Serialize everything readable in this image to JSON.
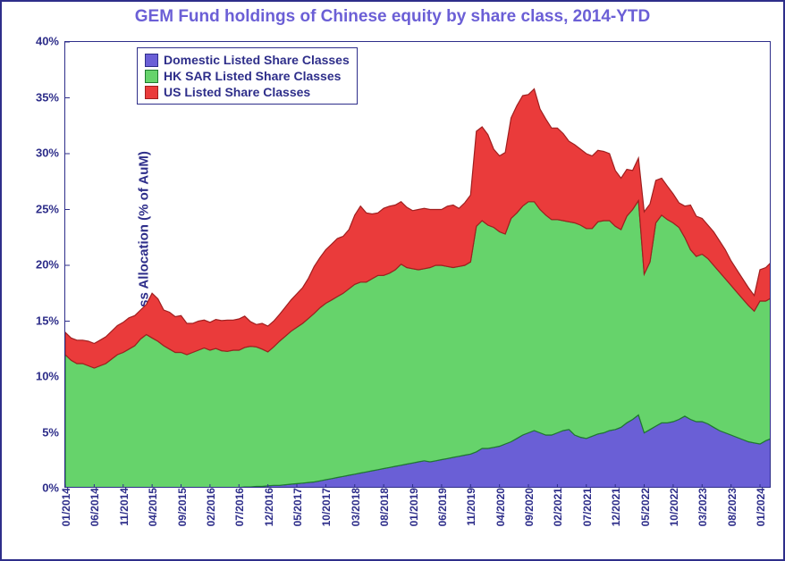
{
  "chart": {
    "type": "stacked_area",
    "title": "GEM Fund holdings of Chinese equity by share class, 2014-YTD",
    "title_fontsize": 19,
    "title_color": "#6b5fd6",
    "yaxis_label": "China Share Class Allocation (% of AuM)",
    "axis_label_fontsize": 15,
    "axis_color": "#2e2e8a",
    "border_color": "#2e2e8a",
    "background_color": "#ffffff",
    "grid": {
      "enabled": false
    },
    "ylim": [
      0,
      40
    ],
    "ytick_step": 5,
    "ytick_labels": [
      "0%",
      "5%",
      "10%",
      "15%",
      "20%",
      "25%",
      "30%",
      "35%",
      "40%"
    ],
    "ytick_fontsize": 13,
    "x_ticks": {
      "indices": [
        0,
        5,
        10,
        15,
        20,
        25,
        30,
        35,
        40,
        45,
        50,
        55,
        60,
        65,
        70,
        75,
        80,
        85,
        90,
        95,
        100,
        105,
        110,
        115,
        120
      ],
      "labels": [
        "01/2014",
        "06/2014",
        "11/2014",
        "04/2015",
        "09/2015",
        "02/2016",
        "07/2016",
        "12/2016",
        "05/2017",
        "10/2017",
        "03/2018",
        "08/2018",
        "01/2019",
        "06/2019",
        "11/2019",
        "04/2020",
        "09/2020",
        "02/2021",
        "07/2021",
        "12/2021",
        "05/2022",
        "10/2022",
        "03/2023",
        "08/2023",
        "01/2024"
      ],
      "fontsize": 12,
      "rotation": -90
    },
    "legend": {
      "position": "top-left-inside",
      "border_color": "#2e2e8a",
      "font_color": "#2e2e8a",
      "fontsize": 14,
      "items": [
        {
          "label": "Domestic Listed Share Classes",
          "fill": "#6a5fd6",
          "stroke": "#2e2e8a"
        },
        {
          "label": "HK SAR Listed Share Classes",
          "fill": "#66d36b",
          "stroke": "#1f7a2f"
        },
        {
          "label": "US Listed Share Classes",
          "fill": "#ea3b3b",
          "stroke": "#a01f1f"
        }
      ]
    },
    "series": [
      {
        "name": "Domestic Listed Share Classes",
        "fill": "#6a5fd6",
        "stroke": "#2e2e8a",
        "stroke_width": 1.2,
        "values": [
          0,
          0,
          0,
          0,
          0,
          0,
          0,
          0,
          0,
          0,
          0,
          0,
          0,
          0,
          0,
          0,
          0,
          0,
          0,
          0,
          0,
          0,
          0,
          0,
          0,
          0,
          0.05,
          0.05,
          0.1,
          0.1,
          0.1,
          0.15,
          0.15,
          0.2,
          0.2,
          0.25,
          0.3,
          0.3,
          0.35,
          0.4,
          0.45,
          0.5,
          0.55,
          0.6,
          0.7,
          0.8,
          0.9,
          1.0,
          1.1,
          1.2,
          1.3,
          1.4,
          1.5,
          1.6,
          1.7,
          1.8,
          1.9,
          2.0,
          2.1,
          2.2,
          2.3,
          2.4,
          2.5,
          2.4,
          2.5,
          2.6,
          2.7,
          2.8,
          2.9,
          3.0,
          3.1,
          3.3,
          3.6,
          3.6,
          3.7,
          3.8,
          4.0,
          4.2,
          4.5,
          4.8,
          5.0,
          5.2,
          5.0,
          4.8,
          4.8,
          5.0,
          5.2,
          5.3,
          4.8,
          4.6,
          4.5,
          4.7,
          4.9,
          5.0,
          5.2,
          5.3,
          5.5,
          5.9,
          6.2,
          6.6,
          5.0,
          5.3,
          5.6,
          5.9,
          5.9,
          6.0,
          6.2,
          6.5,
          6.2,
          6.0,
          6.0,
          5.8,
          5.5,
          5.2,
          5.0,
          4.8,
          4.6,
          4.4,
          4.2,
          4.1,
          4.0,
          4.3,
          4.5
        ]
      },
      {
        "name": "HK SAR Listed Share Classes",
        "fill": "#66d36b",
        "stroke": "#1f7a2f",
        "stroke_width": 1.2,
        "values": [
          12.0,
          11.5,
          11.2,
          11.2,
          11.0,
          10.8,
          11.0,
          11.2,
          11.6,
          12.0,
          12.2,
          12.5,
          12.8,
          13.4,
          13.8,
          13.5,
          13.2,
          12.8,
          12.5,
          12.2,
          12.2,
          12.0,
          12.2,
          12.4,
          12.6,
          12.4,
          12.5,
          12.3,
          12.2,
          12.3,
          12.3,
          12.5,
          12.6,
          12.5,
          12.3,
          12.0,
          12.4,
          12.9,
          13.3,
          13.7,
          14.0,
          14.3,
          14.7,
          15.1,
          15.5,
          15.8,
          16.0,
          16.2,
          16.4,
          16.7,
          17.0,
          17.1,
          17.0,
          17.2,
          17.4,
          17.3,
          17.4,
          17.6,
          18.0,
          17.6,
          17.4,
          17.2,
          17.2,
          17.4,
          17.5,
          17.4,
          17.2,
          17.0,
          17.0,
          17.0,
          17.2,
          20.2,
          20.4,
          20.0,
          19.7,
          19.2,
          18.8,
          20.0,
          20.2,
          20.5,
          20.7,
          20.5,
          20.0,
          19.7,
          19.3,
          19.1,
          18.8,
          18.6,
          19.0,
          19.0,
          18.8,
          18.6,
          19.0,
          19.0,
          18.8,
          18.2,
          17.7,
          18.5,
          18.8,
          19.2,
          14.2,
          15.0,
          18.2,
          18.6,
          18.2,
          17.8,
          17.2,
          16.0,
          15.2,
          14.8,
          15.0,
          14.8,
          14.5,
          14.2,
          13.8,
          13.4,
          13.0,
          12.6,
          12.2,
          11.8,
          12.8,
          12.5,
          12.6
        ]
      },
      {
        "name": "US Listed Share Classes",
        "fill": "#ea3b3b",
        "stroke": "#a01f1f",
        "stroke_width": 1.2,
        "values": [
          2.0,
          2.0,
          2.1,
          2.1,
          2.2,
          2.2,
          2.3,
          2.4,
          2.5,
          2.6,
          2.7,
          2.8,
          2.7,
          2.6,
          2.7,
          4.0,
          3.8,
          3.2,
          3.3,
          3.2,
          3.3,
          2.8,
          2.6,
          2.6,
          2.5,
          2.5,
          2.6,
          2.7,
          2.8,
          2.7,
          2.8,
          2.8,
          2.2,
          2.0,
          2.3,
          2.3,
          2.3,
          2.4,
          2.6,
          2.8,
          3.0,
          3.2,
          3.6,
          4.2,
          4.5,
          4.8,
          5.0,
          5.2,
          5.1,
          5.3,
          6.2,
          6.8,
          6.2,
          5.8,
          5.6,
          6.0,
          6.0,
          5.8,
          5.6,
          5.4,
          5.2,
          5.4,
          5.4,
          5.2,
          5.0,
          5.0,
          5.4,
          5.6,
          5.2,
          5.6,
          6.0,
          8.5,
          8.4,
          8.1,
          7.0,
          6.8,
          7.3,
          9.0,
          9.6,
          9.9,
          9.6,
          10.1,
          9.0,
          8.6,
          8.2,
          8.2,
          7.8,
          7.2,
          7.0,
          6.8,
          6.7,
          6.5,
          6.4,
          6.2,
          6.0,
          5.0,
          4.6,
          4.2,
          3.5,
          3.8,
          5.6,
          5.2,
          3.8,
          3.3,
          3.0,
          2.6,
          2.2,
          2.8,
          4.0,
          3.6,
          3.2,
          3.0,
          3.0,
          2.8,
          2.6,
          2.2,
          2.0,
          1.8,
          1.6,
          1.4,
          2.8,
          3.0,
          3.2
        ]
      }
    ],
    "n_points": 123
  }
}
